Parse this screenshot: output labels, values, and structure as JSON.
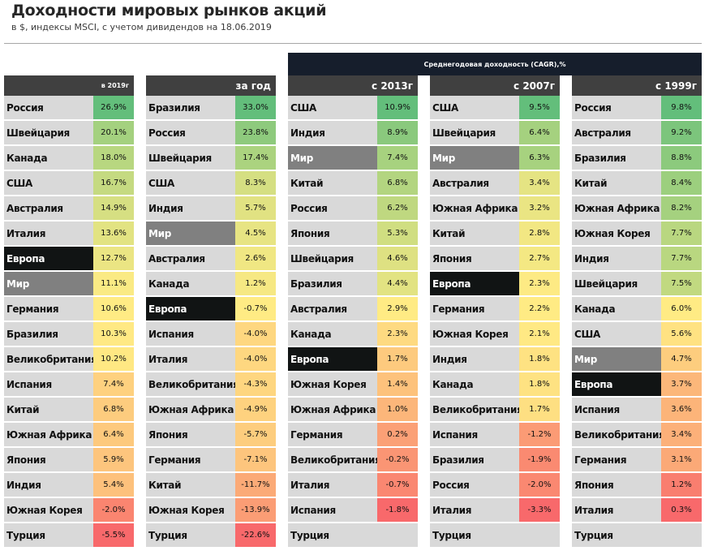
{
  "header": {
    "title": "Доходности мировых рынков акций",
    "subtitle": "в $, индексы  MSCI, с учетом дивидендов на 18.06.2019"
  },
  "cagr_label": "Среднегодовая доходность (CAGR),%",
  "colors": {
    "header_bg": "#404040",
    "cagr_bg": "#161e2c",
    "name_bg": "#d9d9d9",
    "world_bg": "#808080",
    "europe_bg": "#111414",
    "scale_high": "#63be7b",
    "scale_mid": "#ffeb84",
    "scale_low": "#f8696b"
  },
  "panels": [
    {
      "header": "в 2019г",
      "rows": [
        {
          "name": "Россия",
          "value": "26.9%",
          "v": 26.9
        },
        {
          "name": "Швейцария",
          "value": "20.1%",
          "v": 20.1
        },
        {
          "name": "Канада",
          "value": "18.0%",
          "v": 18.0
        },
        {
          "name": "США",
          "value": "16.7%",
          "v": 16.7
        },
        {
          "name": "Австралия",
          "value": "14.9%",
          "v": 14.9
        },
        {
          "name": "Италия",
          "value": "13.6%",
          "v": 13.6
        },
        {
          "name": "Европа",
          "value": "12.7%",
          "v": 12.7,
          "kind": "europe"
        },
        {
          "name": "Мир",
          "value": "11.1%",
          "v": 11.1,
          "kind": "world"
        },
        {
          "name": "Германия",
          "value": "10.6%",
          "v": 10.6
        },
        {
          "name": "Бразилия",
          "value": "10.3%",
          "v": 10.3
        },
        {
          "name": "Великобритания",
          "value": "10.2%",
          "v": 10.2
        },
        {
          "name": "Испания",
          "value": "7.4%",
          "v": 7.4
        },
        {
          "name": "Китай",
          "value": "6.8%",
          "v": 6.8
        },
        {
          "name": "Южная Африка",
          "value": "6.4%",
          "v": 6.4
        },
        {
          "name": "Япония",
          "value": "5.9%",
          "v": 5.9
        },
        {
          "name": "Индия",
          "value": "5.4%",
          "v": 5.4
        },
        {
          "name": "Южная Корея",
          "value": "-2.0%",
          "v": -2.0
        },
        {
          "name": "Турция",
          "value": "-5.5%",
          "v": -5.5
        }
      ]
    },
    {
      "header": "за год",
      "rows": [
        {
          "name": "Бразилия",
          "value": "33.0%",
          "v": 33.0
        },
        {
          "name": "Россия",
          "value": "23.8%",
          "v": 23.8
        },
        {
          "name": "Швейцария",
          "value": "17.4%",
          "v": 17.4
        },
        {
          "name": "США",
          "value": "8.3%",
          "v": 8.3
        },
        {
          "name": "Индия",
          "value": "5.7%",
          "v": 5.7
        },
        {
          "name": "Мир",
          "value": "4.5%",
          "v": 4.5,
          "kind": "world"
        },
        {
          "name": "Австралия",
          "value": "2.6%",
          "v": 2.6
        },
        {
          "name": "Канада",
          "value": "1.2%",
          "v": 1.2
        },
        {
          "name": "Европа",
          "value": "-0.7%",
          "v": -0.7,
          "kind": "europe"
        },
        {
          "name": "Испания",
          "value": "-4.0%",
          "v": -4.0
        },
        {
          "name": "Италия",
          "value": "-4.0%",
          "v": -4.0
        },
        {
          "name": "Великобритания",
          "value": "-4.3%",
          "v": -4.3
        },
        {
          "name": "Южная Африка",
          "value": "-4.9%",
          "v": -4.9
        },
        {
          "name": "Япония",
          "value": "-5.7%",
          "v": -5.7
        },
        {
          "name": "Германия",
          "value": "-7.1%",
          "v": -7.1
        },
        {
          "name": "Китай",
          "value": "-11.7%",
          "v": -11.7
        },
        {
          "name": "Южная Корея",
          "value": "-13.9%",
          "v": -13.9
        },
        {
          "name": "Турция",
          "value": "-22.6%",
          "v": -22.6
        }
      ]
    },
    {
      "header": "с 2013г",
      "rows": [
        {
          "name": "США",
          "value": "10.9%",
          "v": 10.9
        },
        {
          "name": "Индия",
          "value": "8.9%",
          "v": 8.9
        },
        {
          "name": "Мир",
          "value": "7.4%",
          "v": 7.4,
          "kind": "world"
        },
        {
          "name": "Китай",
          "value": "6.8%",
          "v": 6.8
        },
        {
          "name": "Россия",
          "value": "6.2%",
          "v": 6.2
        },
        {
          "name": "Япония",
          "value": "5.3%",
          "v": 5.3
        },
        {
          "name": "Швейцария",
          "value": "4.6%",
          "v": 4.6
        },
        {
          "name": "Бразилия",
          "value": "4.4%",
          "v": 4.4
        },
        {
          "name": "Австралия",
          "value": "2.9%",
          "v": 2.9
        },
        {
          "name": "Канада",
          "value": "2.3%",
          "v": 2.3
        },
        {
          "name": "Европа",
          "value": "1.7%",
          "v": 1.7,
          "kind": "europe"
        },
        {
          "name": "Южная Корея",
          "value": "1.4%",
          "v": 1.4
        },
        {
          "name": "Южная Африка",
          "value": "1.0%",
          "v": 1.0
        },
        {
          "name": "Германия",
          "value": "0.2%",
          "v": 0.2
        },
        {
          "name": "Великобритания",
          "value": "-0.2%",
          "v": -0.2
        },
        {
          "name": "Италия",
          "value": "-0.7%",
          "v": -0.7
        },
        {
          "name": "Испания",
          "value": "-1.8%",
          "v": -1.8
        },
        {
          "name": "Турция",
          "value": "",
          "v": null
        }
      ]
    },
    {
      "header": "с 2007г",
      "rows": [
        {
          "name": "США",
          "value": "9.5%",
          "v": 9.5
        },
        {
          "name": "Швейцария",
          "value": "6.4%",
          "v": 6.4
        },
        {
          "name": "Мир",
          "value": "6.3%",
          "v": 6.3,
          "kind": "world"
        },
        {
          "name": "Австралия",
          "value": "3.4%",
          "v": 3.4
        },
        {
          "name": "Южная Африка",
          "value": "3.2%",
          "v": 3.2
        },
        {
          "name": "Китай",
          "value": "2.8%",
          "v": 2.8
        },
        {
          "name": "Япония",
          "value": "2.7%",
          "v": 2.7
        },
        {
          "name": "Европа",
          "value": "2.3%",
          "v": 2.3,
          "kind": "europe"
        },
        {
          "name": "Германия",
          "value": "2.2%",
          "v": 2.2
        },
        {
          "name": "Южная Корея",
          "value": "2.1%",
          "v": 2.1
        },
        {
          "name": "Индия",
          "value": "1.8%",
          "v": 1.8
        },
        {
          "name": "Канада",
          "value": "1.8%",
          "v": 1.8
        },
        {
          "name": "Великобритания",
          "value": "1.7%",
          "v": 1.7
        },
        {
          "name": "Испания",
          "value": "-1.2%",
          "v": -1.2
        },
        {
          "name": "Бразилия",
          "value": "-1.9%",
          "v": -1.9
        },
        {
          "name": "Россия",
          "value": "-2.0%",
          "v": -2.0
        },
        {
          "name": "Италия",
          "value": "-3.3%",
          "v": -3.3
        },
        {
          "name": "Турция",
          "value": "",
          "v": null
        }
      ]
    },
    {
      "header": "с 1999г",
      "rows": [
        {
          "name": "Россия",
          "value": "9.8%",
          "v": 9.8
        },
        {
          "name": "Австралия",
          "value": "9.2%",
          "v": 9.2
        },
        {
          "name": "Бразилия",
          "value": "8.8%",
          "v": 8.8
        },
        {
          "name": "Китай",
          "value": "8.4%",
          "v": 8.4
        },
        {
          "name": "Южная Африка",
          "value": "8.2%",
          "v": 8.2
        },
        {
          "name": "Южная Корея",
          "value": "7.7%",
          "v": 7.7
        },
        {
          "name": "Индия",
          "value": "7.7%",
          "v": 7.7
        },
        {
          "name": "Швейцария",
          "value": "7.5%",
          "v": 7.5
        },
        {
          "name": "Канада",
          "value": "6.0%",
          "v": 6.0
        },
        {
          "name": "США",
          "value": "5.6%",
          "v": 5.6
        },
        {
          "name": "Мир",
          "value": "4.7%",
          "v": 4.7,
          "kind": "world"
        },
        {
          "name": "Европа",
          "value": "3.7%",
          "v": 3.7,
          "kind": "europe"
        },
        {
          "name": "Испания",
          "value": "3.6%",
          "v": 3.6
        },
        {
          "name": "Великобритания",
          "value": "3.4%",
          "v": 3.4
        },
        {
          "name": "Германия",
          "value": "3.1%",
          "v": 3.1
        },
        {
          "name": "Япония",
          "value": "1.2%",
          "v": 1.2
        },
        {
          "name": "Италия",
          "value": "0.3%",
          "v": 0.3
        },
        {
          "name": "Турция",
          "value": "",
          "v": null
        }
      ]
    }
  ]
}
